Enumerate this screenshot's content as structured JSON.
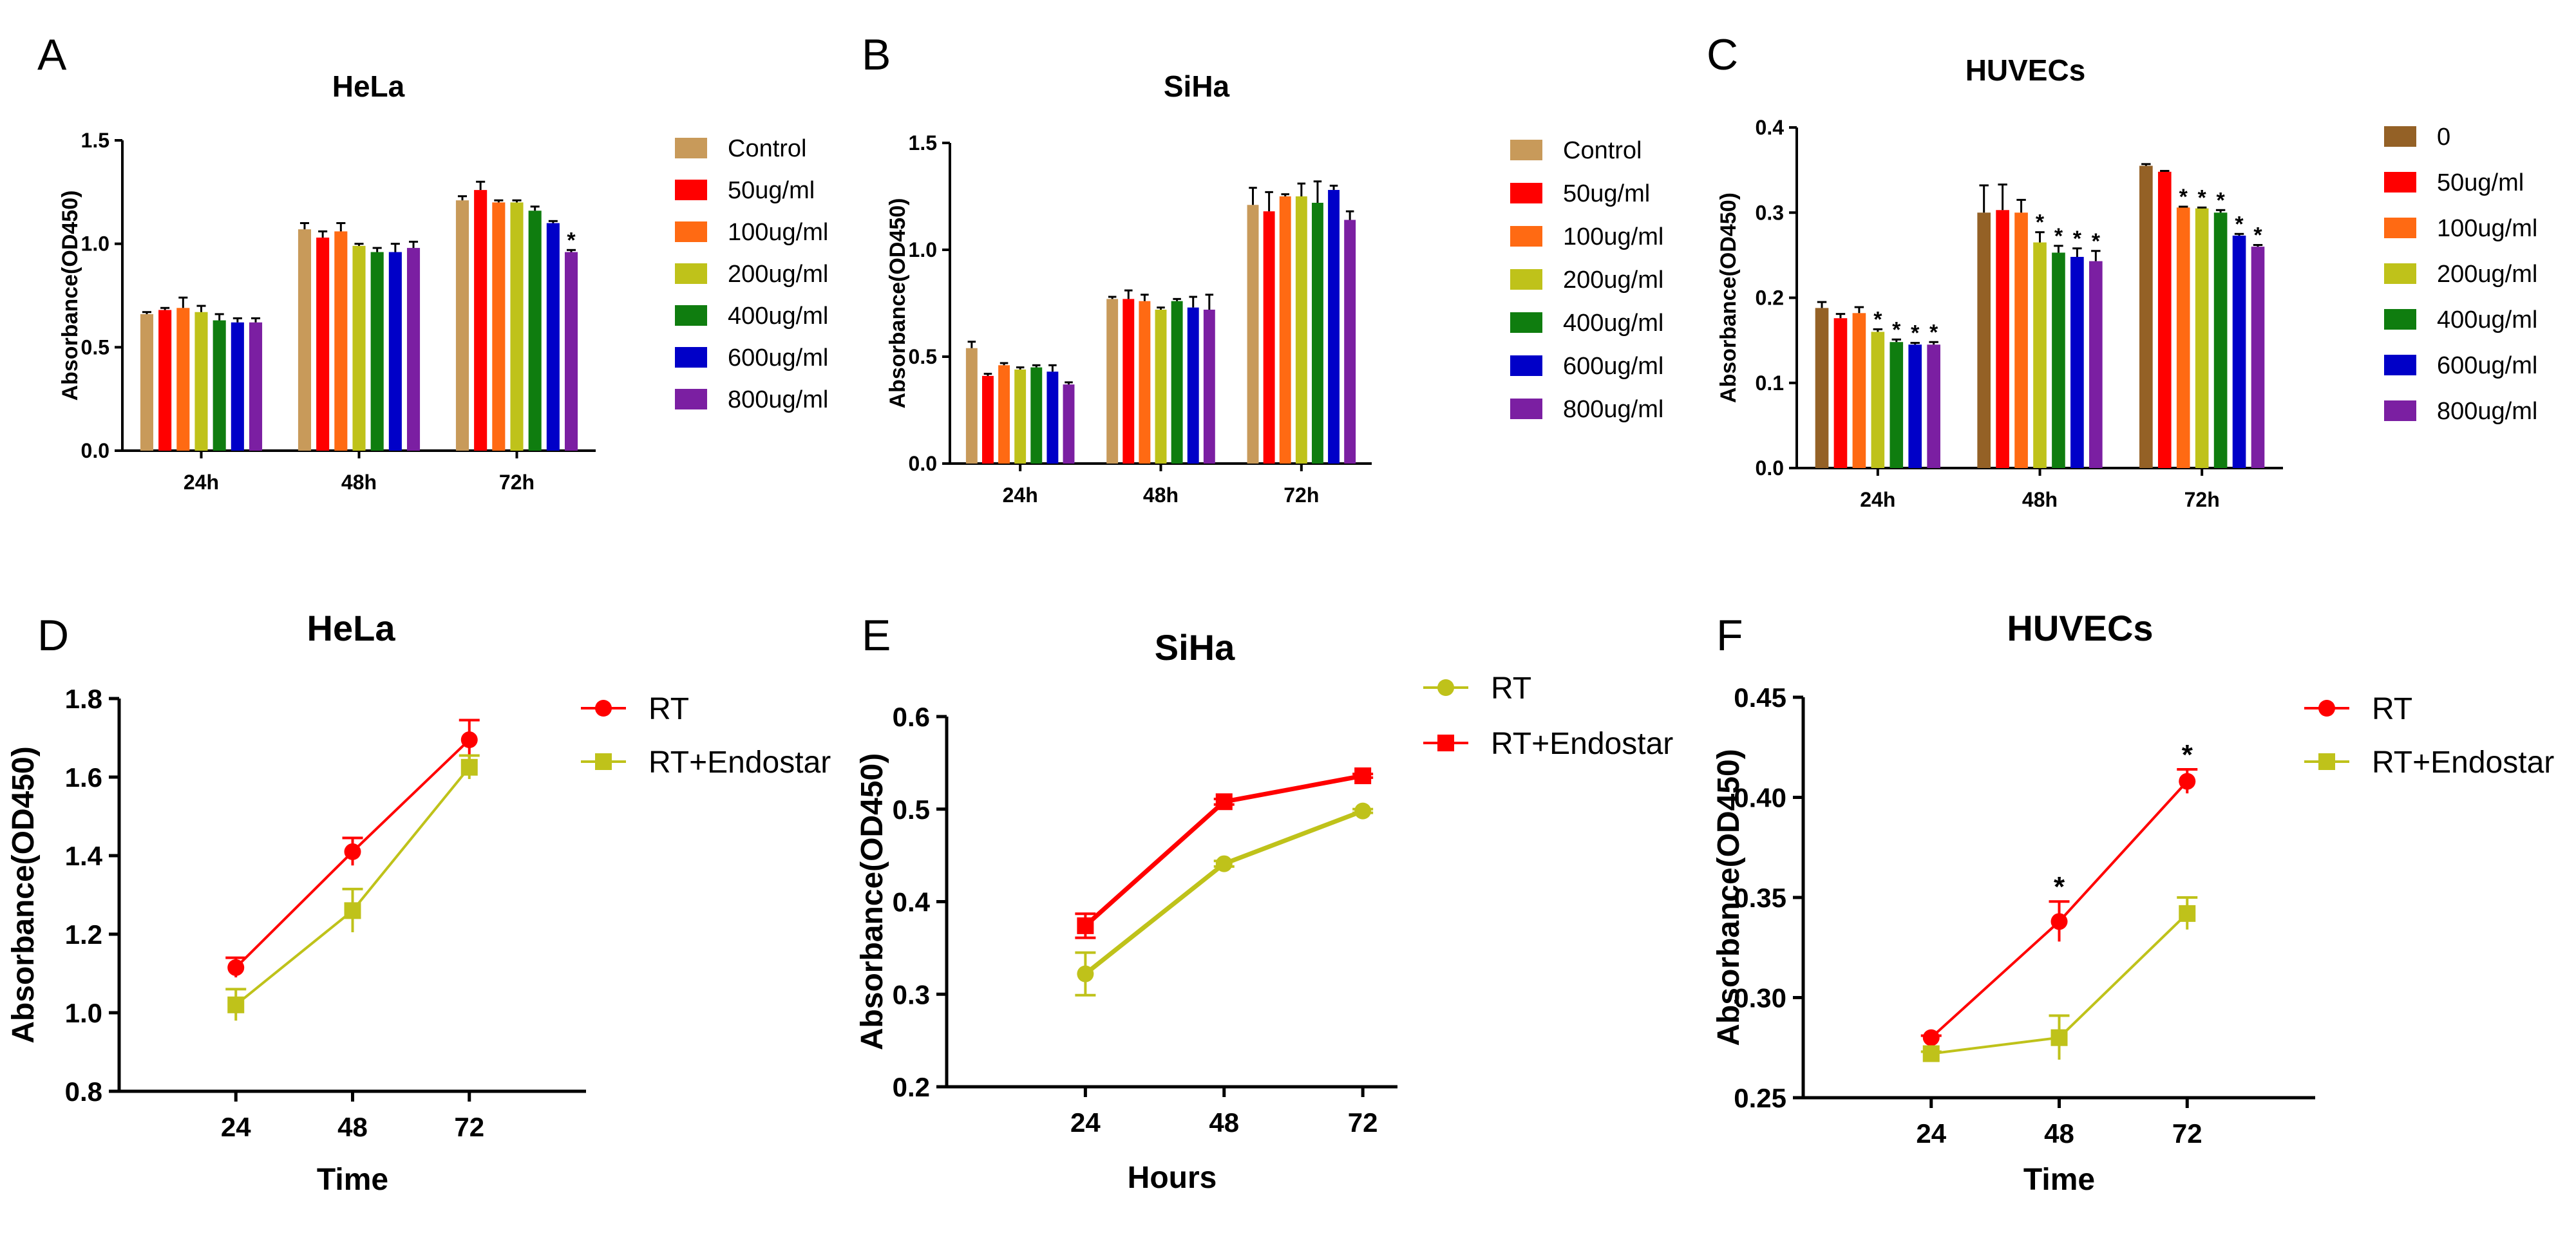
{
  "chart_data": [
    {
      "panel": "A",
      "type": "bar",
      "title": "HeLa",
      "ylabel": "Absorbance(OD450)",
      "xlabel": "",
      "ylim": [
        0,
        1.5
      ],
      "yticks": [
        0.0,
        0.5,
        1.0,
        1.5
      ],
      "ytick_labels": [
        "0.0",
        "0.5",
        "1.0",
        "1.5"
      ],
      "categories": [
        "24h",
        "48h",
        "72h"
      ],
      "series": [
        {
          "name": "Control",
          "color": "#c89a5a",
          "values": [
            0.66,
            1.07,
            1.21
          ],
          "errors": [
            0.01,
            0.03,
            0.02
          ],
          "sig": [
            false,
            false,
            false
          ]
        },
        {
          "name": "50ug/ml",
          "color": "#ff0000",
          "values": [
            0.68,
            1.03,
            1.26
          ],
          "errors": [
            0.01,
            0.03,
            0.04
          ],
          "sig": [
            false,
            false,
            false
          ]
        },
        {
          "name": "100ug/ml",
          "color": "#ff6a13",
          "values": [
            0.69,
            1.06,
            1.2
          ],
          "errors": [
            0.05,
            0.04,
            0.01
          ],
          "sig": [
            false,
            false,
            false
          ]
        },
        {
          "name": "200ug/ml",
          "color": "#bfc21a",
          "values": [
            0.67,
            0.99,
            1.2
          ],
          "errors": [
            0.03,
            0.01,
            0.01
          ],
          "sig": [
            false,
            false,
            false
          ]
        },
        {
          "name": "400ug/ml",
          "color": "#0f7d0f",
          "values": [
            0.63,
            0.96,
            1.16
          ],
          "errors": [
            0.03,
            0.02,
            0.02
          ],
          "sig": [
            false,
            false,
            false
          ]
        },
        {
          "name": "600ug/ml",
          "color": "#0000c8",
          "values": [
            0.62,
            0.96,
            1.1
          ],
          "errors": [
            0.02,
            0.04,
            0.01
          ],
          "sig": [
            false,
            false,
            false
          ]
        },
        {
          "name": "800ug/ml",
          "color": "#7b1fa2",
          "values": [
            0.62,
            0.98,
            0.96
          ],
          "errors": [
            0.02,
            0.03,
            0.01
          ],
          "sig": [
            false,
            false,
            true
          ]
        }
      ],
      "sig_label": "*"
    },
    {
      "panel": "B",
      "type": "bar",
      "title": "SiHa",
      "ylabel": "Absorbance(OD450)",
      "xlabel": "",
      "ylim": [
        0,
        1.5
      ],
      "yticks": [
        0.0,
        0.5,
        1.0,
        1.5
      ],
      "ytick_labels": [
        "0.0",
        "0.5",
        "1.0",
        "1.5"
      ],
      "categories": [
        "24h",
        "48h",
        "72h"
      ],
      "series": [
        {
          "name": "Control",
          "color": "#c89a5a",
          "values": [
            0.54,
            0.77,
            1.21
          ],
          "errors": [
            0.03,
            0.01,
            0.08
          ],
          "sig": [
            false,
            false,
            false
          ]
        },
        {
          "name": "50ug/ml",
          "color": "#ff0000",
          "values": [
            0.41,
            0.77,
            1.18
          ],
          "errors": [
            0.01,
            0.04,
            0.09
          ],
          "sig": [
            false,
            false,
            false
          ]
        },
        {
          "name": "100ug/ml",
          "color": "#ff6a13",
          "values": [
            0.46,
            0.76,
            1.25
          ],
          "errors": [
            0.01,
            0.03,
            0.01
          ],
          "sig": [
            false,
            false,
            false
          ]
        },
        {
          "name": "200ug/ml",
          "color": "#bfc21a",
          "values": [
            0.44,
            0.72,
            1.25
          ],
          "errors": [
            0.01,
            0.01,
            0.06
          ],
          "sig": [
            false,
            false,
            false
          ]
        },
        {
          "name": "400ug/ml",
          "color": "#0f7d0f",
          "values": [
            0.45,
            0.76,
            1.22
          ],
          "errors": [
            0.01,
            0.01,
            0.1
          ],
          "sig": [
            false,
            false,
            false
          ]
        },
        {
          "name": "600ug/ml",
          "color": "#0000c8",
          "values": [
            0.43,
            0.73,
            1.28
          ],
          "errors": [
            0.03,
            0.05,
            0.02
          ],
          "sig": [
            false,
            false,
            false
          ]
        },
        {
          "name": "800ug/ml",
          "color": "#7b1fa2",
          "values": [
            0.37,
            0.72,
            1.14
          ],
          "errors": [
            0.01,
            0.07,
            0.04
          ],
          "sig": [
            false,
            false,
            false
          ]
        }
      ],
      "sig_label": "*"
    },
    {
      "panel": "C",
      "type": "bar",
      "title": "HUVECs",
      "ylabel": "Absorbance(OD450)",
      "xlabel": "",
      "ylim": [
        0,
        0.4
      ],
      "yticks": [
        0.0,
        0.1,
        0.2,
        0.3,
        0.4
      ],
      "ytick_labels": [
        "0.0",
        "0.1",
        "0.2",
        "0.3",
        "0.4"
      ],
      "categories": [
        "24h",
        "48h",
        "72h"
      ],
      "series": [
        {
          "name": "0",
          "color": "#946126",
          "values": [
            0.188,
            0.3,
            0.355
          ],
          "errors": [
            0.007,
            0.032,
            0.002
          ],
          "sig": [
            false,
            false,
            false
          ]
        },
        {
          "name": "50ug/ml",
          "color": "#ff0000",
          "values": [
            0.176,
            0.303,
            0.348
          ],
          "errors": [
            0.005,
            0.03,
            0.001
          ],
          "sig": [
            false,
            false,
            false
          ]
        },
        {
          "name": "100ug/ml",
          "color": "#ff6a13",
          "values": [
            0.182,
            0.3,
            0.306
          ],
          "errors": [
            0.007,
            0.015,
            0.001
          ],
          "sig": [
            false,
            false,
            true
          ]
        },
        {
          "name": "200ug/ml",
          "color": "#bfc21a",
          "values": [
            0.16,
            0.265,
            0.305
          ],
          "errors": [
            0.003,
            0.012,
            0.001
          ],
          "sig": [
            true,
            true,
            true
          ]
        },
        {
          "name": "400ug/ml",
          "color": "#0f7d0f",
          "values": [
            0.148,
            0.253,
            0.3
          ],
          "errors": [
            0.003,
            0.008,
            0.003
          ],
          "sig": [
            true,
            true,
            true
          ]
        },
        {
          "name": "600ug/ml",
          "color": "#0000c8",
          "values": [
            0.145,
            0.248,
            0.273
          ],
          "errors": [
            0.002,
            0.01,
            0.002
          ],
          "sig": [
            true,
            true,
            true
          ]
        },
        {
          "name": "800ug/ml",
          "color": "#7b1fa2",
          "values": [
            0.145,
            0.243,
            0.26
          ],
          "errors": [
            0.003,
            0.012,
            0.002
          ],
          "sig": [
            true,
            true,
            true
          ]
        }
      ],
      "sig_label": "*"
    },
    {
      "panel": "D",
      "type": "line",
      "title": "HeLa",
      "xlabel": "Time",
      "ylabel": "Absorbance(OD450)",
      "x": [
        24,
        48,
        72
      ],
      "xlim": [
        0,
        96
      ],
      "ylim": [
        0.8,
        1.8
      ],
      "yticks": [
        0.8,
        1.0,
        1.2,
        1.4,
        1.6,
        1.8
      ],
      "ytick_labels": [
        "0.8",
        "1.0",
        "1.2",
        "1.4",
        "1.6",
        "1.8"
      ],
      "series": [
        {
          "name": "RT",
          "color": "#ff0000",
          "marker": "circle",
          "values": [
            1.115,
            1.41,
            1.695
          ],
          "errors": [
            0.025,
            0.035,
            0.05
          ],
          "sig": [
            false,
            false,
            false
          ]
        },
        {
          "name": "RT+Endostar",
          "color": "#bfc21a",
          "marker": "square",
          "values": [
            1.02,
            1.26,
            1.625
          ],
          "errors": [
            0.04,
            0.055,
            0.03
          ],
          "sig": [
            false,
            false,
            false
          ]
        }
      ],
      "sig_label": "*"
    },
    {
      "panel": "E",
      "type": "line",
      "title": "SiHa",
      "xlabel": "Hours",
      "ylabel": "Absorbance(OD450)",
      "x": [
        24,
        48,
        72
      ],
      "xlim": [
        0,
        78
      ],
      "ylim": [
        0.2,
        0.6
      ],
      "yticks": [
        0.2,
        0.3,
        0.4,
        0.5,
        0.6
      ],
      "ytick_labels": [
        "0.2",
        "0.3",
        "0.4",
        "0.5",
        "0.6"
      ],
      "series": [
        {
          "name": "RT",
          "color": "#bfc21a",
          "marker": "circle",
          "values": [
            0.322,
            0.441,
            0.498
          ],
          "errors": [
            0.023,
            0.003,
            0.002
          ],
          "sig": [
            false,
            false,
            false
          ]
        },
        {
          "name": "RT+Endostar",
          "color": "#ff0000",
          "marker": "square",
          "values": [
            0.374,
            0.508,
            0.536
          ],
          "errors": [
            0.013,
            0.003,
            0.002
          ],
          "sig": [
            false,
            false,
            false
          ]
        }
      ],
      "sig_label": "*"
    },
    {
      "panel": "F",
      "type": "line",
      "title": "HUVECs",
      "xlabel": "Time",
      "ylabel": "Absorbance(OD450)",
      "x": [
        24,
        48,
        72
      ],
      "xlim": [
        0,
        96
      ],
      "ylim": [
        0.25,
        0.45
      ],
      "yticks": [
        0.25,
        0.3,
        0.35,
        0.4,
        0.45
      ],
      "ytick_labels": [
        "0.25",
        "0.30",
        "0.35",
        "0.40",
        "0.45"
      ],
      "series": [
        {
          "name": "RT",
          "color": "#ff0000",
          "marker": "circle",
          "values": [
            0.28,
            0.338,
            0.408
          ],
          "errors": [
            0.001,
            0.01,
            0.006
          ],
          "sig": [
            false,
            true,
            true
          ]
        },
        {
          "name": "RT+Endostar",
          "color": "#bfc21a",
          "marker": "square",
          "values": [
            0.272,
            0.28,
            0.342
          ],
          "errors": [
            0.001,
            0.011,
            0.008
          ],
          "sig": [
            false,
            false,
            false
          ]
        }
      ],
      "sig_label": "*"
    }
  ]
}
